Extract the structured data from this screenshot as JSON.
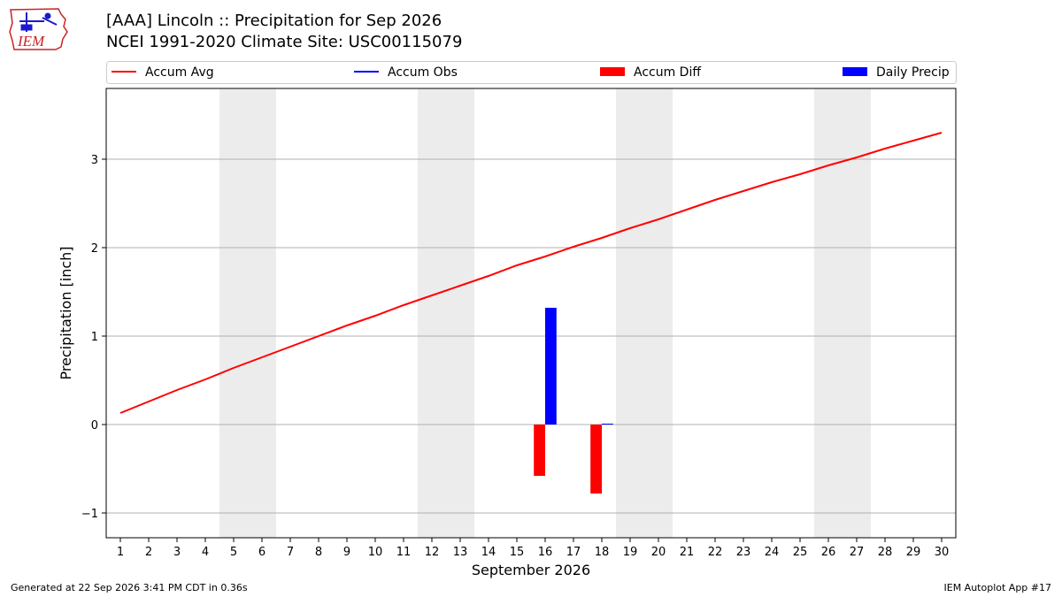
{
  "header": {
    "title_line1": "[AAA] Lincoln :: Precipitation for Sep 2026",
    "title_line2": "NCEI 1991-2020 Climate Site: USC00115079"
  },
  "logo": {
    "text": "IEM"
  },
  "footer": {
    "generated": "Generated at 22 Sep 2026 3:41 PM CDT in 0.36s",
    "app": "IEM Autoplot App #17"
  },
  "colors": {
    "accum_avg": "#ff0000",
    "accum_obs": "#0000ff",
    "accum_diff": "#ff0000",
    "daily_precip": "#0000ff",
    "weekend_shade": "#ececec",
    "grid": "#b0b0b0"
  },
  "chart_data": {
    "type": "bar",
    "xlabel": "September 2026",
    "ylabel": "Precipitation [inch]",
    "xlim": [
      0.5,
      30.5
    ],
    "ylim": [
      -1.28,
      3.8
    ],
    "x_ticks": [
      1,
      2,
      3,
      4,
      5,
      6,
      7,
      8,
      9,
      10,
      11,
      12,
      13,
      14,
      15,
      16,
      17,
      18,
      19,
      20,
      21,
      22,
      23,
      24,
      25,
      26,
      27,
      28,
      29,
      30
    ],
    "y_ticks": [
      -1,
      0,
      1,
      2,
      3
    ],
    "y_tick_labels": [
      "−1",
      "0",
      "1",
      "2",
      "3"
    ],
    "grid": "y",
    "legend_position": "top",
    "weekend_shading": [
      [
        4.5,
        6.5
      ],
      [
        11.5,
        13.5
      ],
      [
        18.5,
        20.5
      ],
      [
        25.5,
        27.5
      ]
    ],
    "legend": [
      "Accum Avg",
      "Accum Obs",
      "Accum Diff",
      "Daily Precip"
    ],
    "series": [
      {
        "name": "Accum Avg",
        "kind": "line",
        "x": [
          1,
          2,
          3,
          4,
          5,
          6,
          7,
          8,
          9,
          10,
          11,
          12,
          13,
          14,
          15,
          16,
          17,
          18,
          19,
          20,
          21,
          22,
          23,
          24,
          25,
          26,
          27,
          28,
          29,
          30
        ],
        "values": [
          0.13,
          0.26,
          0.39,
          0.51,
          0.64,
          0.76,
          0.88,
          1.0,
          1.12,
          1.23,
          1.35,
          1.46,
          1.57,
          1.68,
          1.8,
          1.9,
          2.01,
          2.11,
          2.22,
          2.32,
          2.43,
          2.54,
          2.64,
          2.74,
          2.83,
          2.93,
          3.02,
          3.12,
          3.21,
          3.3
        ]
      },
      {
        "name": "Accum Obs",
        "kind": "line",
        "x": [],
        "values": []
      },
      {
        "name": "Accum Diff",
        "kind": "bar",
        "x": [
          16,
          18
        ],
        "values": [
          -0.58,
          -0.78
        ]
      },
      {
        "name": "Daily Precip",
        "kind": "bar",
        "x": [
          16,
          18
        ],
        "values": [
          1.32,
          0.01
        ]
      }
    ]
  }
}
